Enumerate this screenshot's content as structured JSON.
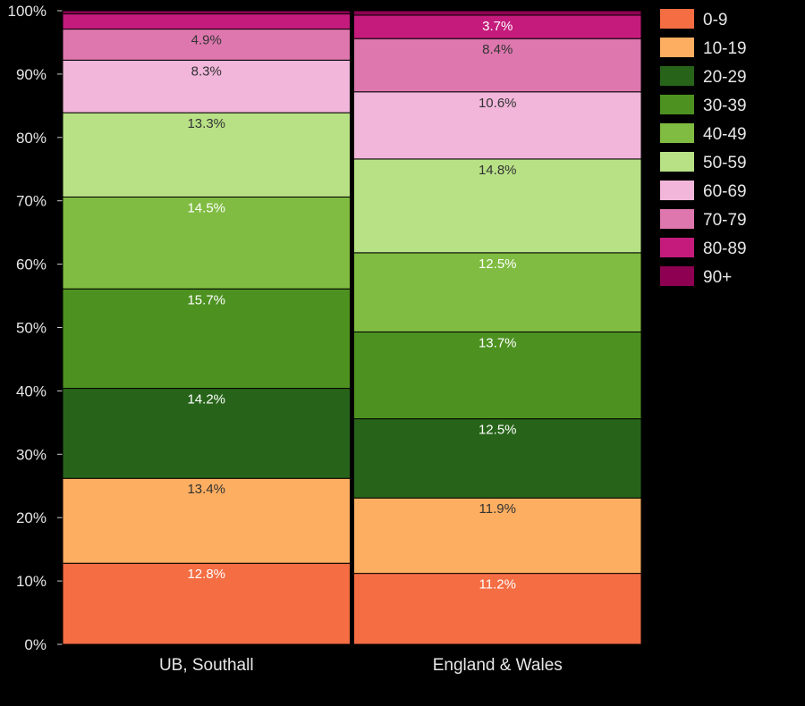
{
  "chart_data": {
    "type": "bar",
    "stacked": true,
    "percent_stacked": true,
    "categories": [
      "UB, Southall",
      "England & Wales"
    ],
    "ylim": [
      0,
      100
    ],
    "yticks": [
      "0%",
      "10%",
      "20%",
      "30%",
      "40%",
      "50%",
      "60%",
      "70%",
      "80%",
      "90%",
      "100%"
    ],
    "legend_position": "right",
    "series": [
      {
        "name": "0-9",
        "color": "#f46d43",
        "values": [
          12.8,
          11.2
        ],
        "labels": [
          "12.8%",
          "11.2%"
        ]
      },
      {
        "name": "10-19",
        "color": "#fdae61",
        "values": [
          13.4,
          11.9
        ],
        "labels": [
          "13.4%",
          "11.9%"
        ]
      },
      {
        "name": "20-29",
        "color": "#276419",
        "values": [
          14.2,
          12.5
        ],
        "labels": [
          "14.2%",
          "12.5%"
        ]
      },
      {
        "name": "30-39",
        "color": "#4d9221",
        "values": [
          15.7,
          13.7
        ],
        "labels": [
          "15.7%",
          "13.7%"
        ]
      },
      {
        "name": "40-49",
        "color": "#7fbc41",
        "values": [
          14.5,
          12.5
        ],
        "labels": [
          "14.5%",
          "12.5%"
        ]
      },
      {
        "name": "50-59",
        "color": "#b8e186",
        "values": [
          13.3,
          14.8
        ],
        "labels": [
          "13.3%",
          "14.8%"
        ]
      },
      {
        "name": "60-69",
        "color": "#f1b6da",
        "values": [
          8.3,
          10.6
        ],
        "labels": [
          "8.3%",
          "10.6%"
        ]
      },
      {
        "name": "70-79",
        "color": "#de77ae",
        "values": [
          4.9,
          8.4
        ],
        "labels": [
          "4.9%",
          "8.4%"
        ]
      },
      {
        "name": "80-89",
        "color": "#c51b7d",
        "values": [
          2.4,
          3.7
        ],
        "labels": [
          "",
          "3.7%"
        ]
      },
      {
        "name": "90+",
        "color": "#8e0152",
        "values": [
          0.5,
          0.7
        ],
        "labels": [
          "",
          ""
        ]
      }
    ]
  }
}
